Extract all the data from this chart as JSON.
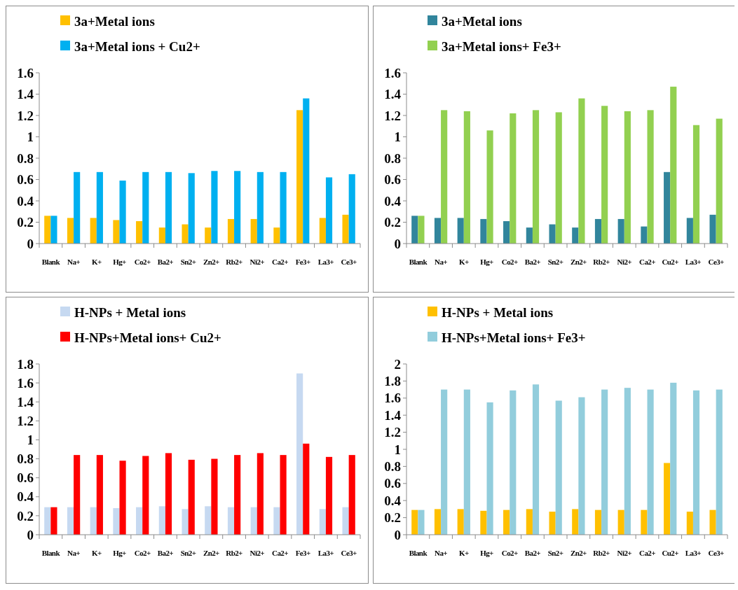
{
  "chart_data": [
    {
      "type": "bar",
      "categories": [
        "Blank",
        "Na+",
        "K+",
        "Hg+",
        "Co2+",
        "Ba2+",
        "Sn2+",
        "Zn2+",
        "Rb2+",
        "Ni2+",
        "Ca2+",
        "Fe3+",
        "La3+",
        "Ce3+"
      ],
      "ylim": [
        0,
        1.6
      ],
      "yticks": [
        0,
        0.2,
        0.4,
        0.6,
        0.8,
        1,
        1.2,
        1.4,
        1.6
      ],
      "legend": "top left",
      "series": [
        {
          "name": "3a+Metal ions",
          "color": "#ffc000",
          "values": [
            0.26,
            0.24,
            0.24,
            0.22,
            0.21,
            0.15,
            0.18,
            0.15,
            0.23,
            0.23,
            0.15,
            1.25,
            0.24,
            0.27
          ]
        },
        {
          "name": "3a+Metal ions + Cu2+",
          "color": "#00b0f0",
          "values": [
            0.26,
            0.67,
            0.67,
            0.59,
            0.67,
            0.67,
            0.66,
            0.68,
            0.68,
            0.67,
            0.67,
            1.36,
            0.62,
            0.65
          ]
        }
      ]
    },
    {
      "type": "bar",
      "categories": [
        "Blank",
        "Na+",
        "K+",
        "Hg+",
        "Co2+",
        "Ba2+",
        "Sn2+",
        "Zn2+",
        "Rb2+",
        "Ni2+",
        "Ca2+",
        "Cu2+",
        "La3+",
        "Ce3+"
      ],
      "ylim": [
        0,
        1.6
      ],
      "yticks": [
        0,
        0.2,
        0.4,
        0.6,
        0.8,
        1,
        1.2,
        1.4,
        1.6
      ],
      "legend": "top left",
      "series": [
        {
          "name": "3a+Metal ions",
          "color": "#31859c",
          "values": [
            0.26,
            0.24,
            0.24,
            0.23,
            0.21,
            0.15,
            0.18,
            0.15,
            0.23,
            0.23,
            0.16,
            0.67,
            0.24,
            0.27
          ]
        },
        {
          "name": "3a+Metal ions+ Fe3+",
          "color": "#92d050",
          "values": [
            0.26,
            1.25,
            1.24,
            1.06,
            1.22,
            1.25,
            1.23,
            1.36,
            1.29,
            1.24,
            1.25,
            1.47,
            1.11,
            1.17
          ]
        }
      ]
    },
    {
      "type": "bar",
      "categories": [
        "Blank",
        "Na+",
        "K+",
        "Hg+",
        "Co2+",
        "Ba2+",
        "Sn2+",
        "Zn2+",
        "Rb2+",
        "Ni2+",
        "Ca2+",
        "Fe3+",
        "La3+",
        "Ce3+"
      ],
      "ylim": [
        0,
        1.8
      ],
      "yticks": [
        0,
        0.2,
        0.4,
        0.6,
        0.8,
        1,
        1.2,
        1.4,
        1.6,
        1.8
      ],
      "legend": "top left",
      "series": [
        {
          "name": "H-NPs + Metal ions",
          "color": "#c6d9f1",
          "values": [
            0.29,
            0.29,
            0.29,
            0.28,
            0.29,
            0.3,
            0.27,
            0.3,
            0.29,
            0.29,
            0.29,
            1.7,
            0.27,
            0.29
          ]
        },
        {
          "name": "H-NPs+Metal ions+ Cu2+",
          "color": "#ff0000",
          "values": [
            0.29,
            0.84,
            0.84,
            0.78,
            0.83,
            0.86,
            0.79,
            0.8,
            0.84,
            0.86,
            0.84,
            0.96,
            0.82,
            0.84
          ]
        }
      ]
    },
    {
      "type": "bar",
      "categories": [
        "Blank",
        "Na+",
        "K+",
        "Hg+",
        "Co2+",
        "Ba2+",
        "Sn2+",
        "Zn2+",
        "Rb2+",
        "Ni2+",
        "Ca2+",
        "Cu2+",
        "La3+",
        "Ce3+"
      ],
      "ylim": [
        0,
        2
      ],
      "yticks": [
        0,
        0.2,
        0.4,
        0.6,
        0.8,
        1,
        1.2,
        1.4,
        1.6,
        1.8,
        2
      ],
      "legend": "top left",
      "series": [
        {
          "name": "H-NPs + Metal ions",
          "color": "#ffc000",
          "values": [
            0.29,
            0.3,
            0.3,
            0.28,
            0.29,
            0.3,
            0.27,
            0.3,
            0.29,
            0.29,
            0.29,
            0.84,
            0.27,
            0.29
          ]
        },
        {
          "name": "H-NPs+Metal ions+ Fe3+",
          "color": "#92cddc",
          "values": [
            0.29,
            1.7,
            1.7,
            1.55,
            1.69,
            1.76,
            1.57,
            1.61,
            1.7,
            1.72,
            1.7,
            1.78,
            1.69,
            1.7
          ]
        }
      ]
    }
  ]
}
